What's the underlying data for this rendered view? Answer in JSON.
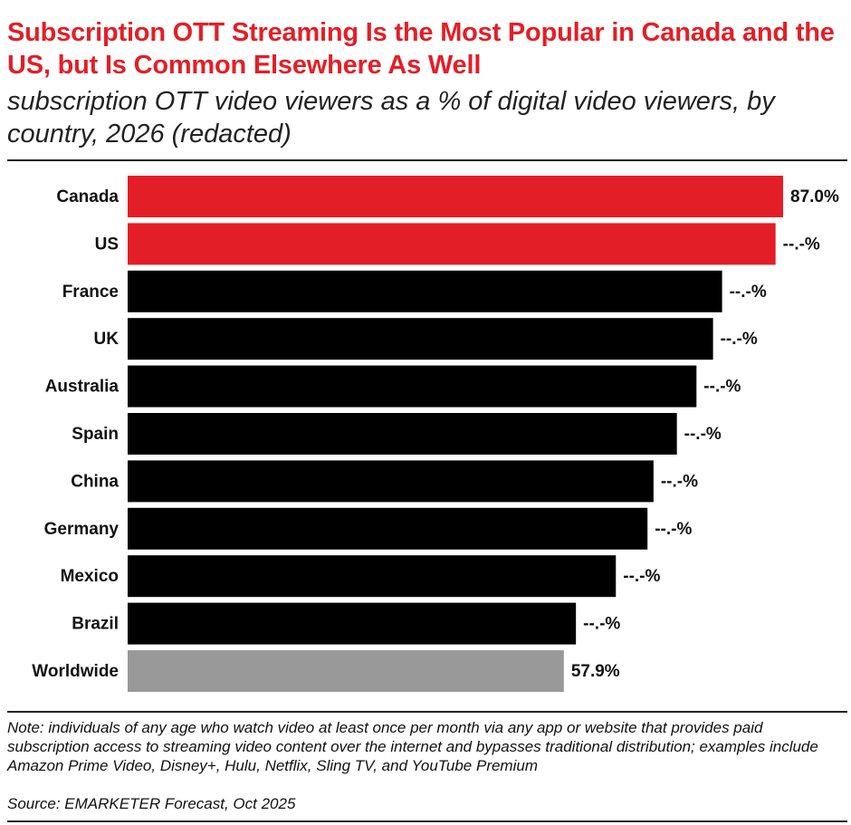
{
  "chart_data": {
    "type": "bar",
    "orientation": "horizontal",
    "title": "Subscription OTT Streaming Is the Most Popular in Canada and the US, but Is Common Elsewhere As Well",
    "subtitle": "subscription OTT video viewers as a % of digital video viewers, by country, 2026 (redacted)",
    "categories": [
      "Canada",
      "US",
      "France",
      "UK",
      "Australia",
      "Spain",
      "China",
      "Germany",
      "Mexico",
      "Brazil",
      "Worldwide"
    ],
    "values": [
      87.0,
      86.0,
      78.9,
      77.7,
      75.5,
      72.9,
      69.8,
      69.0,
      64.8,
      59.5,
      57.9
    ],
    "value_labels": [
      "87.0%",
      "--.-%",
      "--.-%",
      "--.-%",
      "--.-%",
      "--.-%",
      "--.-%",
      "--.-%",
      "--.-%",
      "--.-%",
      "57.9%"
    ],
    "colors": [
      "#e41e26",
      "#e41e26",
      "#000000",
      "#000000",
      "#000000",
      "#000000",
      "#000000",
      "#000000",
      "#000000",
      "#000000",
      "#999999"
    ],
    "note": "Note: individuals of any age who watch video at least once per month via any app or website that provides paid subscription access to streaming video content over the internet and bypasses traditional distribution; examples include Amazon Prime Video, Disney+, Hulu, Netflix, Sling TV, and YouTube Premium",
    "source": "Source: EMARKETER Forecast, Oct 2025"
  }
}
